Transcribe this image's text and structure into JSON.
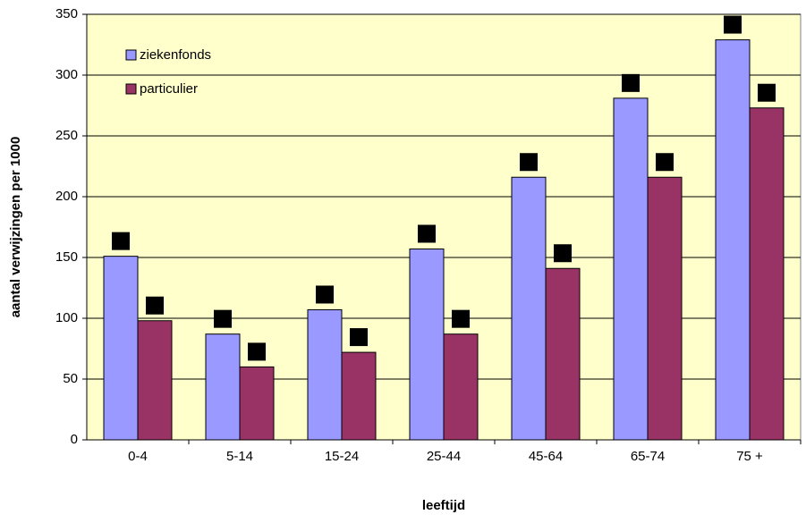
{
  "chart_data": {
    "type": "bar",
    "x_label": "leeftijd",
    "y_label": "aantal verwijzingen per 1000",
    "categories": [
      "0-4",
      "5-14",
      "15-24",
      "25-44",
      "45-64",
      "65-74",
      "75 +"
    ],
    "series": [
      {
        "name": "ziekenfonds",
        "color": "#9999ff",
        "values": [
          151,
          87,
          107,
          157,
          216,
          281,
          329
        ]
      },
      {
        "name": "particulier",
        "color": "#993366",
        "values": [
          98,
          60,
          72,
          87,
          141,
          216,
          273
        ]
      }
    ],
    "ylim": [
      0,
      350
    ],
    "yticks": [
      0,
      50,
      100,
      150,
      200,
      250,
      300,
      350
    ],
    "grid": true,
    "plot_background": "#ffffcc",
    "legend": "upper left"
  }
}
